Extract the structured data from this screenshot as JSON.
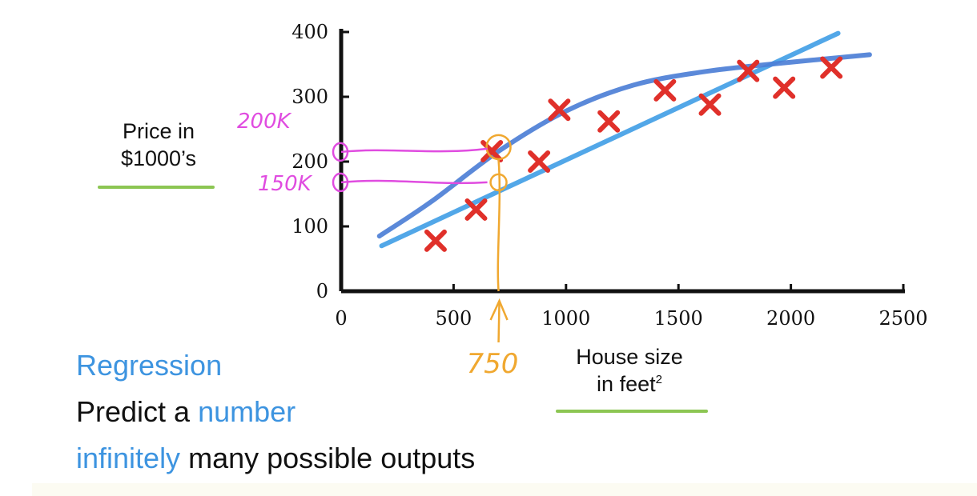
{
  "chart_data": {
    "type": "scatter",
    "xlabel_line1": "House size",
    "xlabel_line2": "in feet",
    "xlabel_sup": "2",
    "ylabel_line1": "Price in",
    "ylabel_line2": "$1000’s",
    "xlim": [
      0,
      2500
    ],
    "ylim": [
      0,
      400
    ],
    "x_ticks": [
      0,
      500,
      1000,
      1500,
      2000,
      2500
    ],
    "y_ticks": [
      0,
      100,
      200,
      300,
      400
    ],
    "grid": false,
    "points": [
      {
        "x": 420,
        "y": 78
      },
      {
        "x": 600,
        "y": 126
      },
      {
        "x": 670,
        "y": 216
      },
      {
        "x": 880,
        "y": 200
      },
      {
        "x": 970,
        "y": 280
      },
      {
        "x": 1190,
        "y": 262
      },
      {
        "x": 1440,
        "y": 310
      },
      {
        "x": 1640,
        "y": 288
      },
      {
        "x": 1810,
        "y": 340
      },
      {
        "x": 1970,
        "y": 314
      },
      {
        "x": 2180,
        "y": 345
      }
    ],
    "fits": [
      {
        "kind": "linear",
        "color": "#43a0e6",
        "points": [
          {
            "x": 180,
            "y": 70
          },
          {
            "x": 2210,
            "y": 398
          }
        ]
      },
      {
        "kind": "curve",
        "color": "#4d7fd6",
        "points": [
          {
            "x": 170,
            "y": 85
          },
          {
            "x": 400,
            "y": 138
          },
          {
            "x": 700,
            "y": 216
          },
          {
            "x": 1000,
            "y": 278
          },
          {
            "x": 1300,
            "y": 318
          },
          {
            "x": 1600,
            "y": 338
          },
          {
            "x": 1900,
            "y": 350
          },
          {
            "x": 2350,
            "y": 365
          }
        ]
      }
    ],
    "annotations": {
      "x_marker": {
        "x": 700,
        "label": "750"
      },
      "y_markers": [
        {
          "y": 215,
          "label": "200K"
        },
        {
          "y": 168,
          "label": "150K"
        }
      ]
    }
  },
  "caption": {
    "line1": "Regression",
    "line2_a": "Predict a",
    "line2_b": "number",
    "line3_a": "infinitely",
    "line3_b": "many possible outputs"
  },
  "colors": {
    "marker": "#e0302a",
    "linear_fit": "#43a0e6",
    "curve_fit": "#4d7fd6",
    "annotation_orange": "#f0a830",
    "annotation_pink": "#e04ce0",
    "underline_green": "#8cc653",
    "caption_blue": "#3d94e0"
  }
}
